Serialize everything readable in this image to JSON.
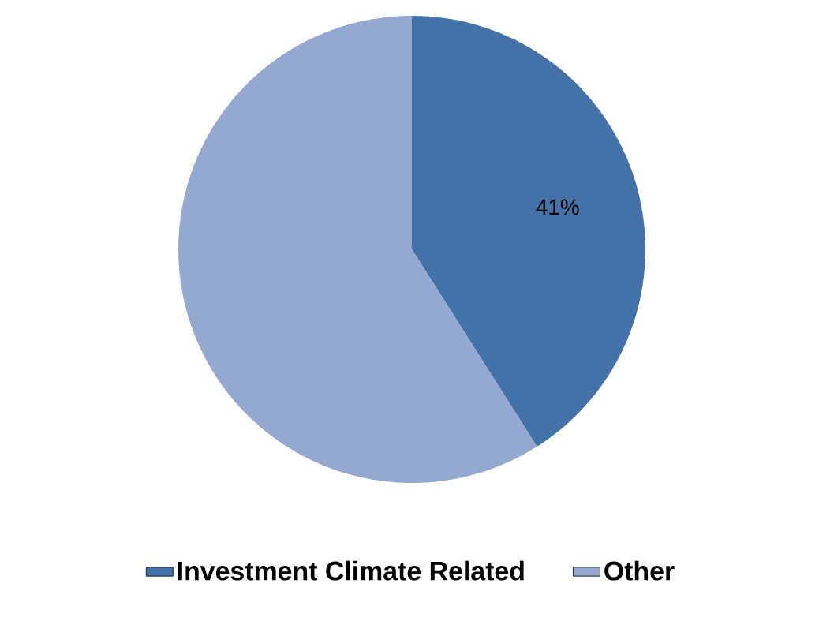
{
  "chart_data": {
    "type": "pie",
    "categories": [
      "Investment Climate Related",
      "Other"
    ],
    "values": [
      41,
      59
    ],
    "colors": [
      "#4472a8",
      "#95a9d0"
    ],
    "value_labels": [
      "41%",
      null
    ],
    "legend": "bottom"
  }
}
